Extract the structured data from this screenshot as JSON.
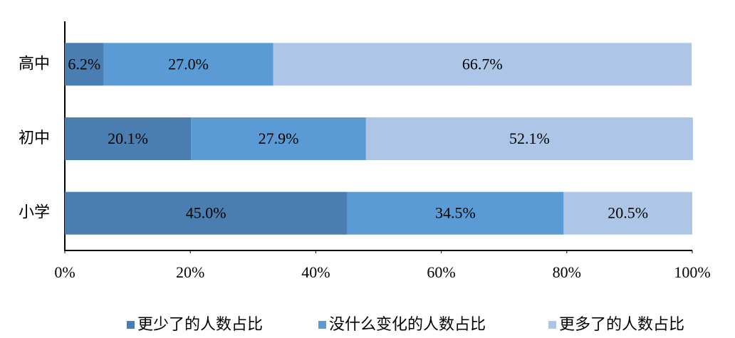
{
  "chart_data": {
    "type": "stacked-barh",
    "categories": [
      "高中",
      "初中",
      "小学"
    ],
    "series": [
      {
        "name": "更少了的人数占比",
        "color": "#4a7eb1",
        "values": [
          6.2,
          20.1,
          45.0
        ],
        "value_labels": [
          "6.2%",
          "20.1%",
          "45.0%"
        ]
      },
      {
        "name": "没什么变化的人数占比",
        "color": "#5b9bd5",
        "values": [
          27.0,
          27.9,
          34.5
        ],
        "value_labels": [
          "27.0%",
          "27.9%",
          "34.5%"
        ]
      },
      {
        "name": "更多了的人数占比",
        "color": "#adc5e6",
        "values": [
          66.7,
          52.1,
          20.5
        ],
        "value_labels": [
          "66.7%",
          "52.1%",
          "20.5%"
        ]
      }
    ],
    "xlim": [
      0,
      100
    ],
    "xticks": [
      {
        "value": 0,
        "label": "0%"
      },
      {
        "value": 20,
        "label": "20%"
      },
      {
        "value": 40,
        "label": "40%"
      },
      {
        "value": 60,
        "label": "60%"
      },
      {
        "value": 80,
        "label": "80%"
      },
      {
        "value": 100,
        "label": "100%"
      }
    ],
    "legend": "bottom"
  }
}
